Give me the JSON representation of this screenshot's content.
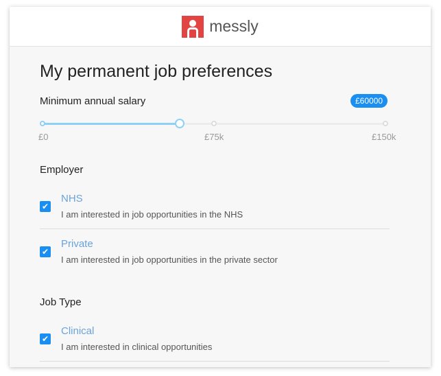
{
  "header": {
    "brand": "messly",
    "logo_icon": "messly-logo"
  },
  "title": "My permanent job preferences",
  "salary": {
    "label": "Minimum annual salary",
    "badge": "£60000",
    "value": 60000,
    "min": 0,
    "max": 150000,
    "ticks": [
      "£0",
      "£75k",
      "£150k"
    ],
    "accent": "#1b8ef2"
  },
  "employer": {
    "heading": "Employer",
    "options": [
      {
        "title": "NHS",
        "desc": "I am interested in job opportunities in the NHS",
        "checked": true
      },
      {
        "title": "Private",
        "desc": "I am interested in job opportunities in the private sector",
        "checked": true
      }
    ]
  },
  "job_type": {
    "heading": "Job Type",
    "options": [
      {
        "title": "Clinical",
        "desc": "I am interested in clinical opportunities",
        "checked": true
      }
    ]
  }
}
